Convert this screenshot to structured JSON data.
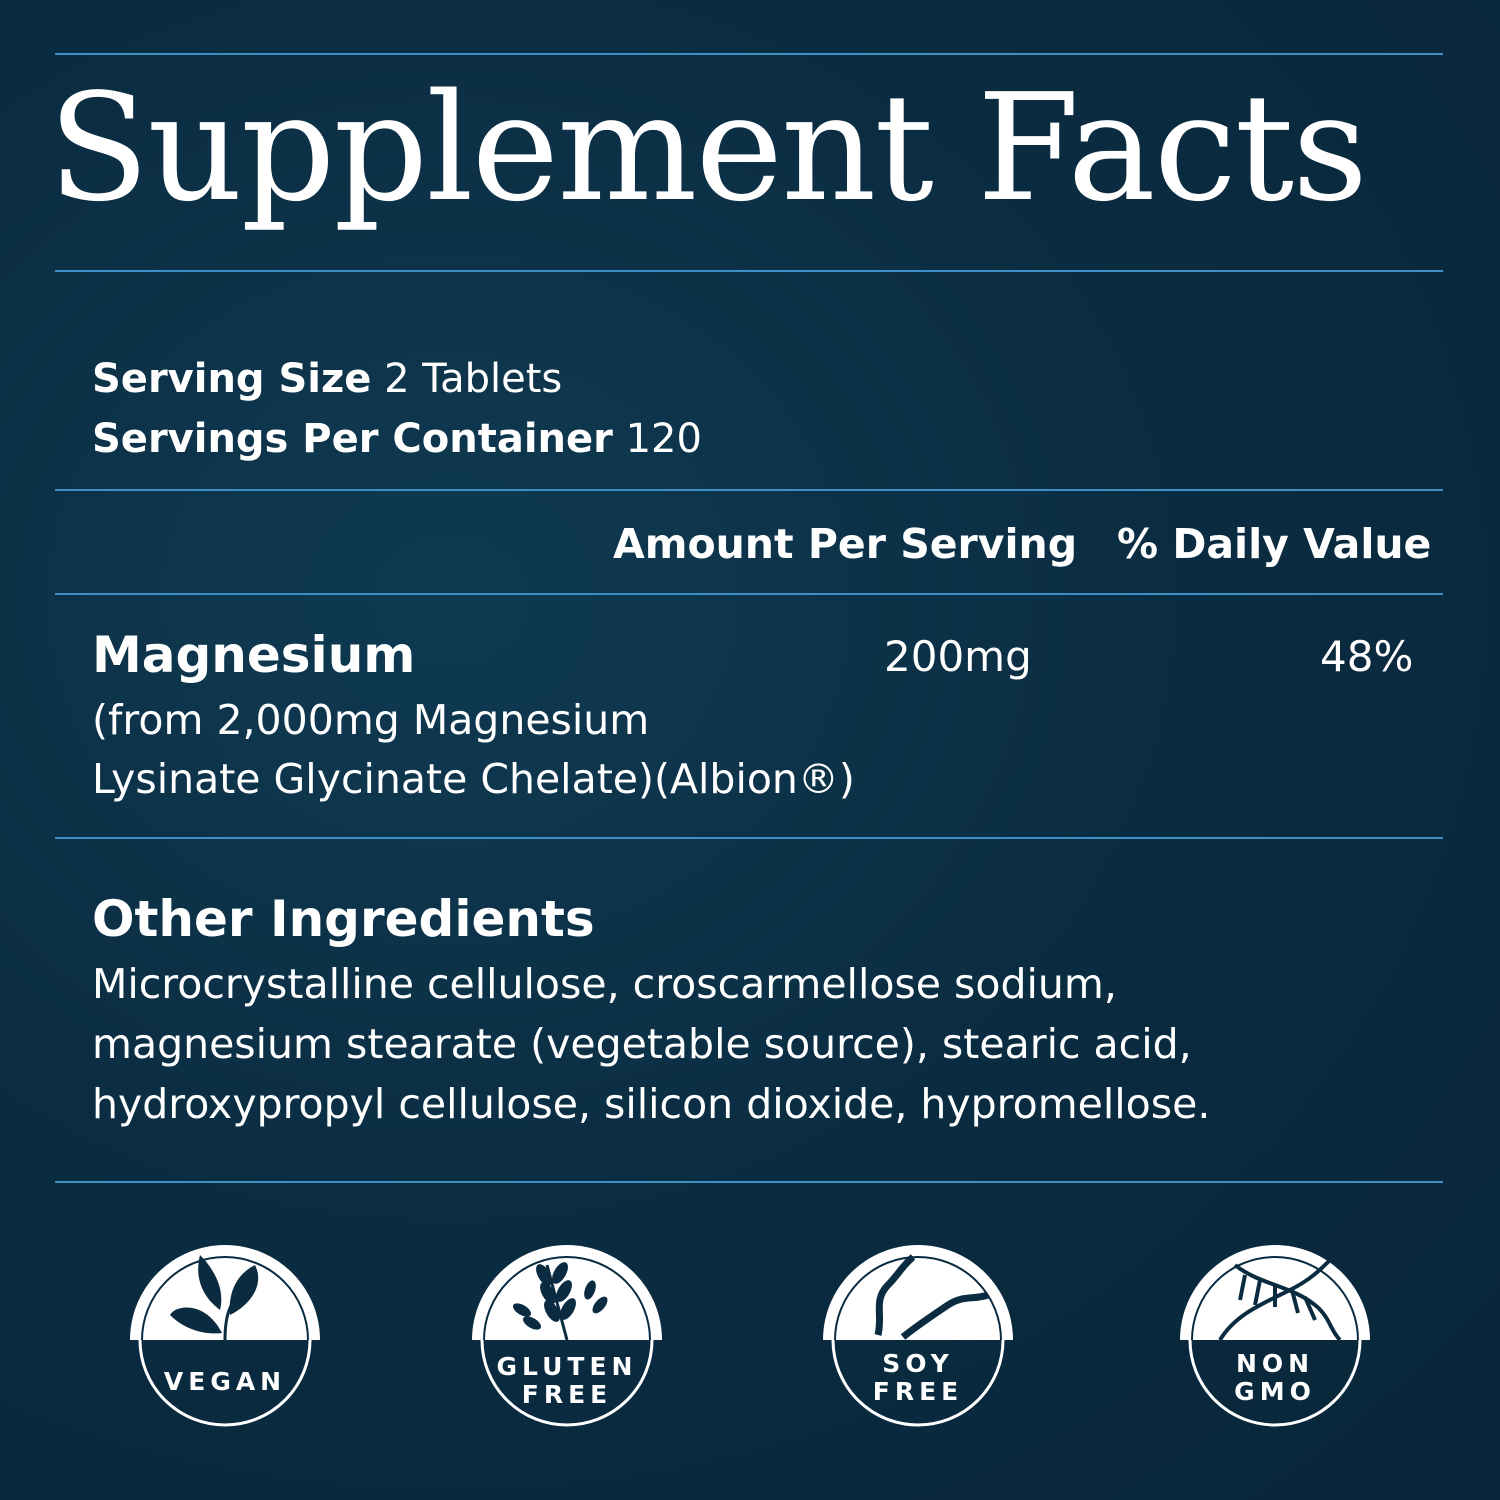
{
  "title": "Supplement Facts",
  "serving": {
    "size_label": "Serving Size",
    "size_value": "2 Tablets",
    "per_container_label": "Servings Per Container",
    "per_container_value": "120"
  },
  "table": {
    "headers": {
      "amount": "Amount Per Serving",
      "dv": "% Daily Value"
    },
    "rows": [
      {
        "name": "Magnesium",
        "source_line1": "(from 2,000mg Magnesium",
        "source_line2": "Lysinate Glycinate Chelate)(Albion®)",
        "amount": "200mg",
        "dv": "48%"
      }
    ]
  },
  "other_ingredients": {
    "heading": "Other Ingredients",
    "lines": [
      "Microcrystalline cellulose, croscarmellose sodium,",
      "magnesium stearate (vegetable source), stearic acid,",
      "hydroxypropyl cellulose, silicon dioxide, hypromellose."
    ]
  },
  "badges": [
    {
      "icon": "leaf-icon",
      "line1": "VEGAN",
      "line2": ""
    },
    {
      "icon": "wheat-icon",
      "line1": "GLUTEN",
      "line2": "FREE"
    },
    {
      "icon": "soybean-icon",
      "line1": "SOY",
      "line2": "FREE"
    },
    {
      "icon": "dna-icon",
      "line1": "NON",
      "line2": "GMO"
    }
  ],
  "colors": {
    "background": "#0a2b40",
    "rule": "#3d8fc6",
    "text": "#ffffff"
  }
}
